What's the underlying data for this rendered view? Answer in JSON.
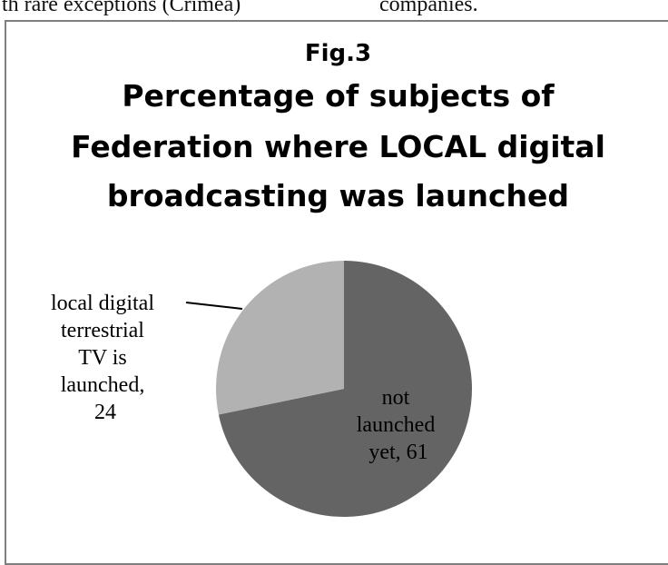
{
  "page_text": {
    "top_left": "th rare exceptions (Crimea)",
    "top_right": "companies."
  },
  "chart_data": {
    "type": "pie",
    "fig_label": "Fig.3",
    "title_lines": [
      "Percentage of subjects of",
      "Federation where LOCAL digital",
      "broadcasting was launched"
    ],
    "slices": [
      {
        "label_lines": [
          "not",
          "launched",
          "yet, 61"
        ],
        "value": 61,
        "color": "#646464"
      },
      {
        "label_lines": [
          "local digital",
          "terrestrial",
          "TV is",
          "launched,",
          "24"
        ],
        "value": 24,
        "color": "#b2b2b2"
      }
    ]
  }
}
